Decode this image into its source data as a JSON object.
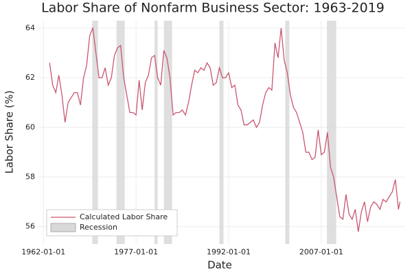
{
  "chart_data": {
    "type": "line",
    "title": "Labor Share of Nonfarm Business Sector: 1963-2019",
    "xlabel": "Date",
    "ylabel": "Labor Share (%)",
    "x": [
      "1963-01-01",
      "1963-07-01",
      "1964-01-01",
      "1964-07-01",
      "1965-01-01",
      "1965-07-01",
      "1966-01-01",
      "1966-07-01",
      "1967-01-01",
      "1967-07-01",
      "1968-01-01",
      "1968-07-01",
      "1969-01-01",
      "1969-07-01",
      "1970-01-01",
      "1970-07-01",
      "1971-01-01",
      "1971-07-01",
      "1972-01-01",
      "1972-07-01",
      "1973-01-01",
      "1973-07-01",
      "1974-01-01",
      "1974-07-01",
      "1975-01-01",
      "1975-07-01",
      "1976-01-01",
      "1976-07-01",
      "1977-01-01",
      "1977-07-01",
      "1978-01-01",
      "1978-07-01",
      "1979-01-01",
      "1979-07-01",
      "1980-01-01",
      "1980-07-01",
      "1981-01-01",
      "1981-07-01",
      "1982-01-01",
      "1982-07-01",
      "1983-01-01",
      "1983-07-01",
      "1984-01-01",
      "1984-07-01",
      "1985-01-01",
      "1985-07-01",
      "1986-01-01",
      "1986-07-01",
      "1987-01-01",
      "1987-07-01",
      "1988-01-01",
      "1988-07-01",
      "1989-01-01",
      "1989-07-01",
      "1990-01-01",
      "1990-07-01",
      "1991-01-01",
      "1991-07-01",
      "1992-01-01",
      "1992-07-01",
      "1993-01-01",
      "1993-07-01",
      "1994-01-01",
      "1994-07-01",
      "1995-01-01",
      "1995-07-01",
      "1996-01-01",
      "1996-07-01",
      "1997-01-01",
      "1997-07-01",
      "1998-01-01",
      "1998-07-01",
      "1999-01-01",
      "1999-07-01",
      "2000-01-01",
      "2000-07-01",
      "2001-01-01",
      "2001-07-01",
      "2002-01-01",
      "2002-07-01",
      "2003-01-01",
      "2003-07-01",
      "2004-01-01",
      "2004-07-01",
      "2005-01-01",
      "2005-07-01",
      "2006-01-01",
      "2006-07-01",
      "2007-01-01",
      "2007-07-01",
      "2008-01-01",
      "2008-07-01",
      "2009-01-01",
      "2009-07-01",
      "2010-01-01",
      "2010-07-01",
      "2011-01-01",
      "2011-07-01",
      "2012-01-01",
      "2012-07-01",
      "2013-01-01",
      "2013-07-01",
      "2014-01-01",
      "2014-07-01",
      "2015-01-01",
      "2015-07-01",
      "2016-01-01",
      "2016-07-01",
      "2017-01-01",
      "2017-07-01",
      "2018-01-01",
      "2018-07-01",
      "2019-01-01",
      "2019-07-01",
      "2019-10-01"
    ],
    "series": [
      {
        "name": "Calculated Labor Share",
        "color": "#c9566e",
        "values": [
          62.6,
          61.7,
          61.4,
          62.1,
          61.3,
          60.2,
          61.0,
          61.2,
          61.4,
          61.4,
          60.9,
          62.0,
          62.5,
          63.7,
          64.0,
          63.0,
          62.0,
          62.0,
          62.4,
          61.7,
          62.0,
          62.9,
          63.2,
          63.3,
          62.0,
          61.3,
          60.6,
          60.6,
          60.5,
          61.9,
          60.7,
          61.8,
          62.1,
          62.8,
          62.9,
          62.0,
          61.7,
          63.1,
          62.8,
          62.0,
          60.5,
          60.6,
          60.6,
          60.7,
          60.5,
          61.0,
          61.7,
          62.3,
          62.2,
          62.4,
          62.3,
          62.6,
          62.4,
          61.7,
          61.8,
          62.4,
          62.0,
          62.0,
          62.2,
          61.6,
          61.7,
          60.9,
          60.7,
          60.1,
          60.1,
          60.2,
          60.3,
          60.0,
          60.2,
          60.9,
          61.4,
          61.6,
          61.5,
          63.4,
          62.8,
          64.0,
          62.7,
          62.2,
          61.3,
          60.8,
          60.6,
          60.2,
          59.8,
          59.0,
          59.0,
          58.7,
          58.8,
          59.9,
          58.9,
          59.0,
          59.8,
          58.4,
          58.0,
          57.2,
          56.4,
          56.3,
          57.3,
          56.5,
          56.3,
          56.7,
          55.8,
          56.6,
          57.0,
          56.2,
          56.8,
          57.0,
          56.9,
          56.7,
          57.1,
          57.0,
          57.2,
          57.4,
          57.9,
          56.7,
          57.0
        ]
      }
    ],
    "recessions": {
      "name": "Recession",
      "color": "#d9d9d9",
      "periods": [
        {
          "start": "1969-12-01",
          "end": "1970-11-01"
        },
        {
          "start": "1973-11-01",
          "end": "1975-03-01"
        },
        {
          "start": "1980-01-01",
          "end": "1980-07-01"
        },
        {
          "start": "1981-07-01",
          "end": "1982-11-01"
        },
        {
          "start": "1990-07-01",
          "end": "1991-03-01"
        },
        {
          "start": "2001-03-01",
          "end": "2001-11-01"
        },
        {
          "start": "2007-12-01",
          "end": "2009-06-01"
        }
      ]
    },
    "xlim": [
      "1961-02-01",
      "2020-08-01"
    ],
    "xticks": [
      "1962-01-01",
      "1977-01-01",
      "1992-01-01",
      "2007-01-01"
    ],
    "ylim": [
      55.3,
      64.3
    ],
    "yticks": [
      56,
      58,
      60,
      62,
      64
    ],
    "grid": true,
    "legend": "bottom-left"
  }
}
